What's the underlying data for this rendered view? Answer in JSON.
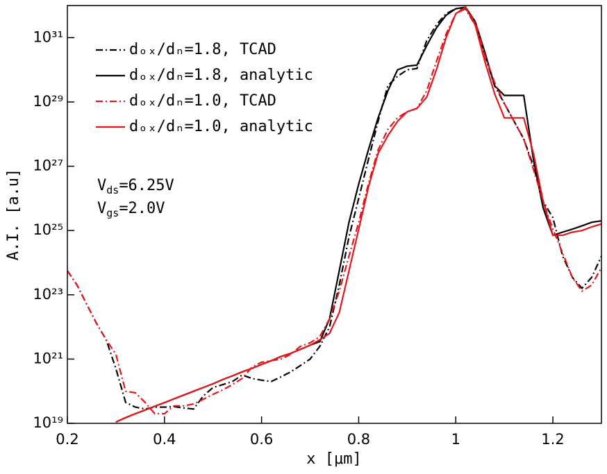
{
  "chart_data": {
    "type": "line",
    "x_label": "x [μm]",
    "y_label": "A.I. [a.u]",
    "xlim": [
      0.2,
      1.3
    ],
    "xticks": [
      0.2,
      0.4,
      0.6,
      0.8,
      {
        "value": 1,
        "label": "1"
      },
      1.2
    ],
    "ylim": [
      1e+19,
      1e+32
    ],
    "log_y": true,
    "yticks": [
      {
        "value": 1e+19,
        "label": "10¹⁹"
      },
      {
        "value": 1e+21,
        "label": "10²¹"
      },
      {
        "value": 1e+23,
        "label": "10²³"
      },
      {
        "value": 1e+25,
        "label": "10²⁵"
      },
      {
        "value": 1e+27,
        "label": "10²⁷"
      },
      {
        "value": 1e+29,
        "label": "10²⁹"
      },
      {
        "value": 1e+31,
        "label": "10³¹"
      }
    ],
    "legend": "upper left",
    "annotations": [
      "Vds=6.25V",
      "Vgs=2.0V"
    ],
    "x": [
      0.2,
      0.22,
      0.24,
      0.26,
      0.28,
      0.3,
      0.32,
      0.34,
      0.36,
      0.38,
      0.4,
      0.42,
      0.44,
      0.46,
      0.48,
      0.5,
      0.52,
      0.54,
      0.56,
      0.58,
      0.6,
      0.62,
      0.64,
      0.66,
      0.68,
      0.7,
      0.72,
      0.74,
      0.76,
      0.78,
      0.8,
      0.82,
      0.84,
      0.86,
      0.88,
      0.9,
      0.92,
      0.94,
      0.96,
      0.98,
      1.0,
      1.02,
      1.04,
      1.06,
      1.08,
      1.1,
      1.12,
      1.14,
      1.16,
      1.18,
      1.2,
      1.22,
      1.24,
      1.26,
      1.28,
      1.3
    ],
    "series": [
      {
        "name": "dₒₓ/dₙ=1.8, TCAD",
        "color": "#000000",
        "linestyle": "dashdot",
        "values": [
          5.6e+23,
          2e+23,
          5e+22,
          1.3e+22,
          4e+21,
          5e+20,
          4.5e+19,
          3.2e+19,
          2.8e+19,
          3.2e+19,
          3.2e+19,
          3.3e+19,
          3e+19,
          2.8e+19,
          7.1e+19,
          1.3e+20,
          1.6e+20,
          2e+20,
          3.2e+20,
          2.5e+20,
          2.2e+20,
          2e+20,
          2.8e+20,
          4e+20,
          6.3e+20,
          1e+21,
          2.5e+21,
          1e+22,
          2e+23,
          6.3e+24,
          1e+26,
          1.6e+27,
          2.5e+28,
          3.2e+29,
          6.3e+29,
          1e+30,
          1.1e+30,
          8e+30,
          2.5e+31,
          5.6e+31,
          8e+31,
          8e+31,
          2.5e+31,
          2.8e+30,
          3.2e+29,
          8.9e+28,
          2.5e+28,
          7.1e+27,
          1e+27,
          8e+25,
          2.5e+25,
          1.6e+24,
          3.5e+23,
          1.6e+23,
          3.5e+23,
          1.6e+24
        ]
      },
      {
        "name": "dₒₓ/dₙ=1.8, analytic",
        "color": "#000000",
        "linestyle": "solid",
        "values": [
          null,
          null,
          null,
          null,
          null,
          1.1e+19,
          1.5e+19,
          2e+19,
          2.6e+19,
          3.4e+19,
          4.4e+19,
          5.8e+19,
          7.6e+19,
          1e+20,
          1.3e+20,
          1.7e+20,
          2.3e+20,
          3e+20,
          4e+20,
          5.1e+20,
          6.8e+20,
          8.9e+20,
          1.2e+21,
          1.5e+21,
          2e+21,
          2.7e+21,
          3.5e+21,
          1.8e+22,
          5.6e+23,
          1.8e+25,
          2.8e+26,
          3.2e+27,
          3.2e+28,
          2.2e+29,
          1e+30,
          1.3e+30,
          1.4e+30,
          5.6e+30,
          2e+31,
          5e+31,
          8e+31,
          8.9e+31,
          3.2e+31,
          3.5e+30,
          3.2e+29,
          1.6e+29,
          1.6e+29,
          1.6e+29,
          1.6e+27,
          5e+25,
          7.1e+24,
          8.9e+24,
          1.1e+25,
          1.4e+25,
          1.8e+25,
          2e+25
        ]
      },
      {
        "name": "dₒₓ/dₙ=1.0, TCAD",
        "color": "#e8141a",
        "linestyle": "dashdot",
        "values": [
          5.6e+23,
          2e+23,
          5e+22,
          1.3e+22,
          4e+21,
          1.4e+21,
          1e+20,
          8.9e+19,
          4.5e+19,
          2e+19,
          2e+19,
          3.5e+19,
          3.5e+19,
          4e+19,
          5.6e+19,
          8e+19,
          1.1e+20,
          1.6e+20,
          2.5e+20,
          5.6e+20,
          8e+20,
          8.9e+20,
          1e+21,
          1.4e+21,
          2.5e+21,
          3.2e+21,
          5e+21,
          1.8e+22,
          1.3e+23,
          1.6e+24,
          1.8e+25,
          2.8e+26,
          3.2e+27,
          1.4e+28,
          3.2e+28,
          5e+28,
          6.3e+28,
          2.2e+29,
          1.8e+30,
          1.3e+31,
          5.6e+31,
          8e+31,
          3.2e+31,
          2.8e+30,
          4e+29,
          8.9e+28,
          2.5e+28,
          7.1e+27,
          8e+26,
          8e+25,
          1.1e+25,
          2e+24,
          3.5e+23,
          1.3e+23,
          2e+23,
          7.1e+23
        ]
      },
      {
        "name": "dₒₓ/dₙ=1.0, analytic",
        "color": "#e8141a",
        "linestyle": "solid",
        "values": [
          null,
          null,
          null,
          null,
          null,
          1.1e+19,
          1.5e+19,
          2e+19,
          2.6e+19,
          3.4e+19,
          4.4e+19,
          5.8e+19,
          7.6e+19,
          1e+20,
          1.3e+20,
          1.7e+20,
          2.3e+20,
          3e+20,
          4e+20,
          5.1e+20,
          6.8e+20,
          8.9e+20,
          1.2e+21,
          1.5e+21,
          2e+21,
          2.7e+21,
          4e+21,
          6.3e+21,
          2.8e+22,
          5.6e+23,
          1.1e+25,
          2.2e+26,
          2.5e+27,
          8.9e+27,
          2.5e+28,
          5e+28,
          6.3e+28,
          1.4e+29,
          1e+30,
          1e+31,
          5.6e+31,
          8.9e+31,
          2.5e+31,
          1.8e+30,
          1.8e+29,
          3.2e+28,
          3.2e+28,
          3.2e+28,
          2.5e+27,
          8e+25,
          7.1e+24,
          7.1e+24,
          8.9e+24,
          1e+25,
          1.3e+25,
          1.6e+25
        ]
      }
    ]
  }
}
